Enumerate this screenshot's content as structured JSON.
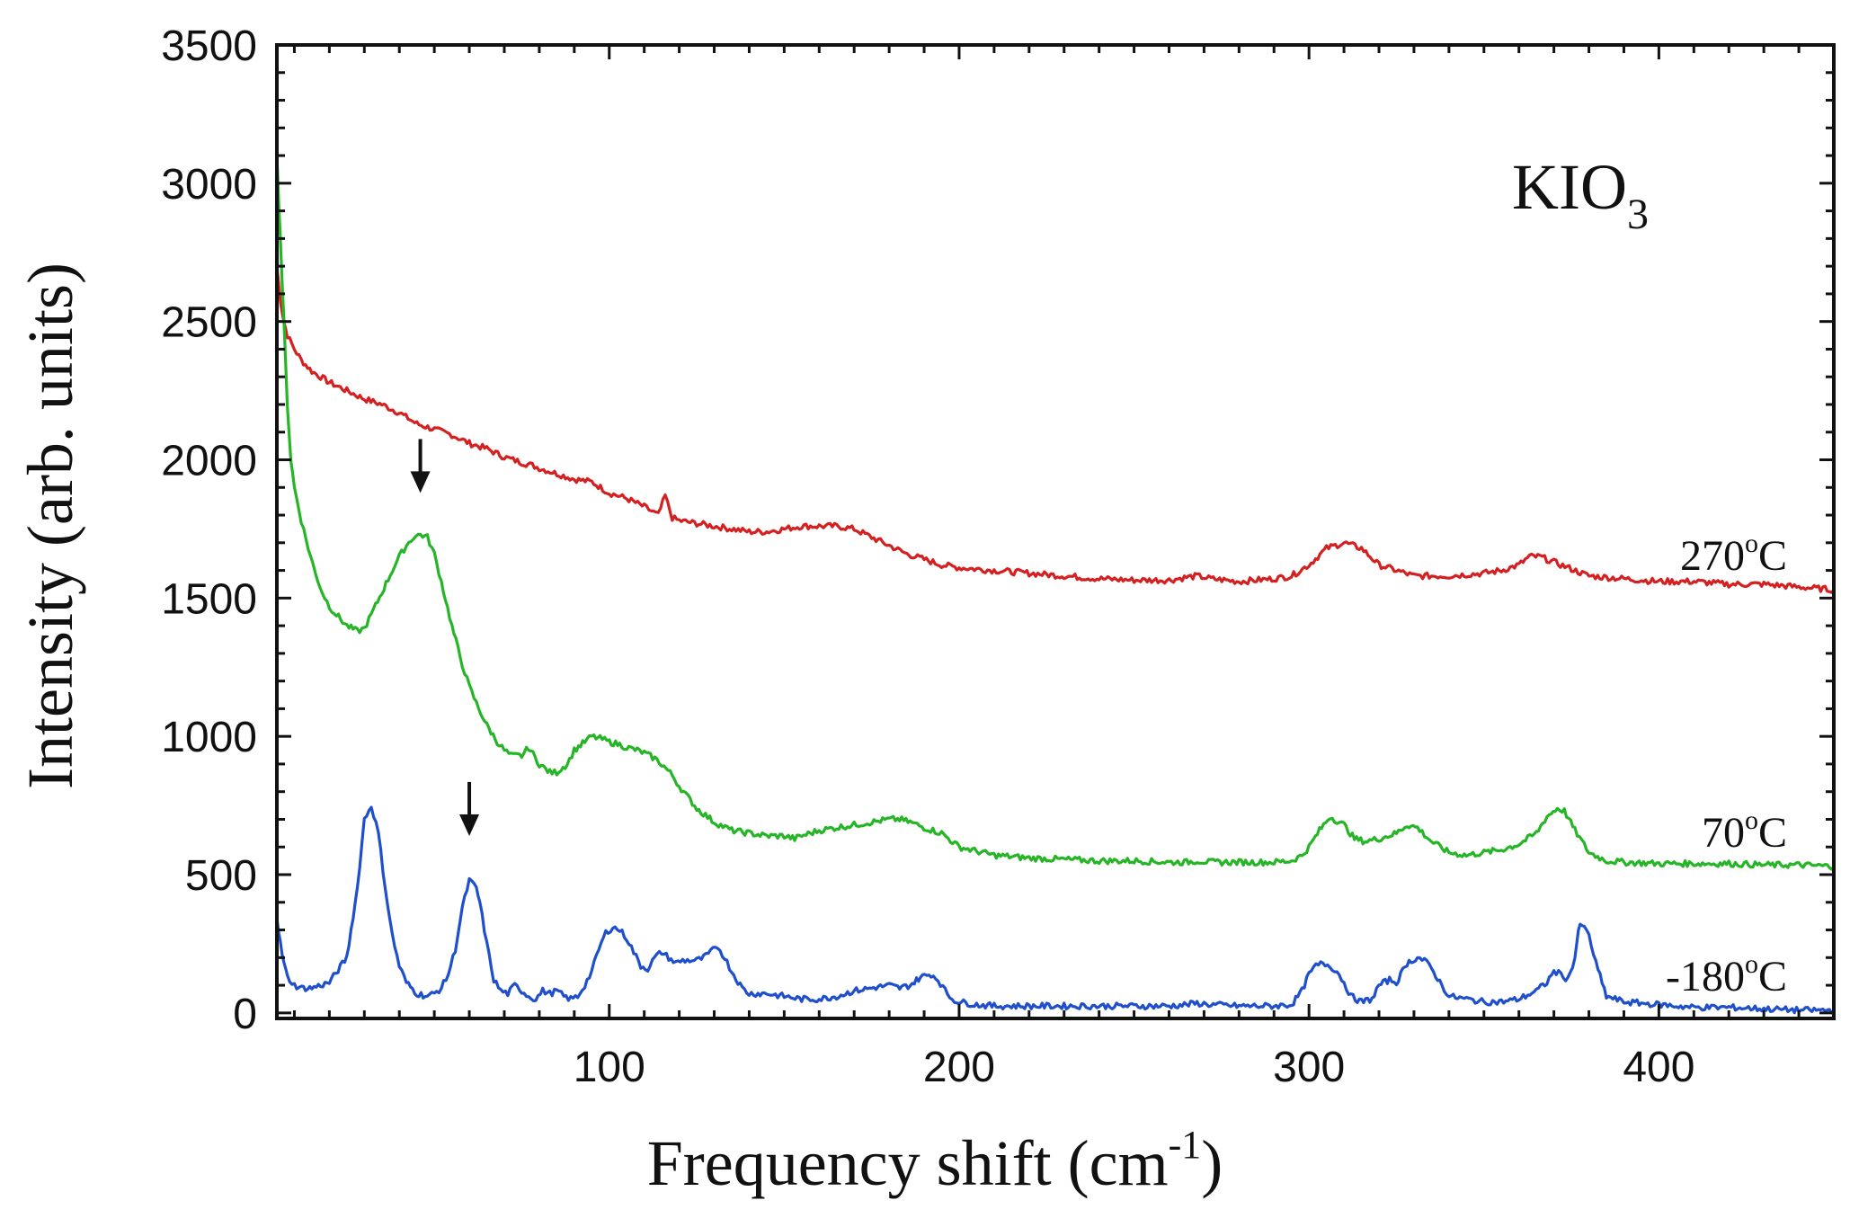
{
  "chart_data": {
    "type": "line",
    "title": "",
    "annotation": {
      "text": "KIO",
      "subscript": "3"
    },
    "xlabel": {
      "text": "Frequency shift (cm",
      "superscript": "-1",
      "suffix": ")"
    },
    "ylabel": "Intensity (arb. units)",
    "xlim": [
      5,
      450
    ],
    "ylim": [
      -20,
      3500
    ],
    "xticks": [
      100,
      200,
      300,
      400
    ],
    "xtick_labels": [
      "100",
      "200",
      "300",
      "400"
    ],
    "yticks": [
      0,
      500,
      1000,
      1500,
      2000,
      2500,
      3000,
      3500
    ],
    "ytick_labels": [
      "0",
      "500",
      "1000",
      "1500",
      "2000",
      "2500",
      "3000",
      "3500"
    ],
    "grid": false,
    "series": [
      {
        "name": "270°C",
        "label_main": "270",
        "label_deg": "o",
        "label_unit": "C",
        "color": "#d42020",
        "x": [
          5,
          6,
          7,
          8,
          10,
          12,
          15,
          20,
          25,
          30,
          35,
          40,
          45,
          50,
          55,
          60,
          65,
          70,
          75,
          78,
          80,
          85,
          90,
          95,
          100,
          105,
          110,
          114,
          116,
          118,
          120,
          125,
          130,
          135,
          140,
          145,
          150,
          155,
          160,
          165,
          170,
          175,
          180,
          185,
          190,
          195,
          200,
          210,
          220,
          230,
          240,
          250,
          260,
          265,
          268,
          272,
          280,
          290,
          295,
          300,
          305,
          310,
          315,
          320,
          330,
          340,
          350,
          355,
          360,
          363,
          366,
          370,
          380,
          390,
          400,
          410,
          420,
          430,
          440,
          450
        ],
        "y": [
          2700,
          2580,
          2500,
          2450,
          2400,
          2360,
          2320,
          2280,
          2250,
          2220,
          2200,
          2170,
          2130,
          2110,
          2090,
          2060,
          2040,
          2010,
          1990,
          1980,
          1970,
          1950,
          1930,
          1920,
          1880,
          1860,
          1830,
          1800,
          1870,
          1790,
          1780,
          1770,
          1760,
          1750,
          1740,
          1740,
          1750,
          1760,
          1760,
          1760,
          1750,
          1720,
          1690,
          1660,
          1640,
          1620,
          1610,
          1600,
          1590,
          1580,
          1570,
          1565,
          1565,
          1575,
          1580,
          1570,
          1560,
          1570,
          1580,
          1620,
          1680,
          1700,
          1680,
          1620,
          1580,
          1580,
          1590,
          1600,
          1620,
          1650,
          1650,
          1630,
          1580,
          1570,
          1560,
          1560,
          1550,
          1550,
          1540,
          1530
        ]
      },
      {
        "name": "70°C",
        "label_main": "70",
        "label_deg": "o",
        "label_unit": "C",
        "color": "#26b526",
        "x": [
          5,
          6,
          7,
          8,
          9,
          10,
          12,
          14,
          16,
          18,
          20,
          22,
          25,
          28,
          30,
          32,
          35,
          38,
          40,
          42,
          44,
          46,
          48,
          50,
          52,
          55,
          58,
          60,
          62,
          65,
          68,
          70,
          72,
          75,
          77,
          80,
          83,
          85,
          88,
          90,
          93,
          95,
          98,
          100,
          103,
          105,
          108,
          110,
          113,
          115,
          118,
          120,
          125,
          130,
          135,
          140,
          145,
          150,
          153,
          155,
          160,
          165,
          170,
          175,
          180,
          183,
          186,
          190,
          195,
          200,
          210,
          220,
          230,
          240,
          250,
          260,
          265,
          268,
          272,
          280,
          290,
          295,
          298,
          300,
          303,
          306,
          310,
          313,
          316,
          320,
          325,
          328,
          331,
          335,
          340,
          345,
          350,
          355,
          360,
          365,
          368,
          371,
          373,
          376,
          380,
          385,
          390,
          400,
          410,
          420,
          430,
          440,
          450
        ],
        "y": [
          3100,
          2800,
          2500,
          2200,
          2000,
          1900,
          1780,
          1680,
          1590,
          1520,
          1470,
          1440,
          1400,
          1380,
          1390,
          1440,
          1520,
          1600,
          1650,
          1690,
          1720,
          1730,
          1720,
          1660,
          1560,
          1400,
          1260,
          1180,
          1120,
          1040,
          980,
          950,
          930,
          930,
          960,
          900,
          870,
          870,
          900,
          950,
          980,
          1000,
          990,
          980,
          970,
          960,
          950,
          940,
          920,
          900,
          860,
          820,
          740,
          690,
          660,
          650,
          640,
          640,
          630,
          640,
          660,
          670,
          680,
          690,
          700,
          700,
          690,
          670,
          650,
          600,
          570,
          560,
          555,
          550,
          550,
          545,
          545,
          550,
          545,
          545,
          545,
          550,
          570,
          600,
          660,
          710,
          680,
          630,
          620,
          630,
          650,
          680,
          670,
          620,
          580,
          570,
          580,
          590,
          610,
          650,
          710,
          740,
          730,
          660,
          580,
          550,
          545,
          540,
          540,
          540,
          535,
          535,
          530
        ]
      },
      {
        "name": "-180°C",
        "label_main": "-180",
        "label_deg": "o",
        "label_unit": "C",
        "color": "#1f4fcc",
        "x": [
          5,
          6,
          7,
          8,
          10,
          12,
          15,
          20,
          25,
          28,
          30,
          32,
          34,
          36,
          38,
          40,
          42,
          45,
          48,
          50,
          52,
          54,
          56,
          58,
          60,
          62,
          63,
          65,
          67,
          69,
          71,
          73,
          75,
          77,
          79,
          81,
          83,
          85,
          87,
          89,
          91,
          93,
          95,
          97,
          99,
          101,
          103,
          105,
          107,
          109,
          111,
          113,
          115,
          117,
          119,
          121,
          123,
          125,
          127,
          129,
          131,
          133,
          135,
          138,
          140,
          145,
          150,
          155,
          160,
          165,
          170,
          175,
          180,
          183,
          186,
          189,
          192,
          194,
          196,
          198,
          200,
          205,
          210,
          220,
          230,
          240,
          250,
          260,
          265,
          268,
          272,
          280,
          290,
          295,
          298,
          300,
          302,
          304,
          306,
          308,
          310,
          312,
          315,
          318,
          320,
          323,
          325,
          328,
          331,
          333,
          335,
          338,
          340,
          345,
          350,
          355,
          360,
          365,
          368,
          370,
          372,
          374,
          376,
          377,
          378,
          380,
          382,
          385,
          390,
          400,
          410,
          420,
          430,
          440,
          450
        ],
        "y": [
          350,
          250,
          180,
          130,
          100,
          90,
          90,
          110,
          200,
          450,
          700,
          750,
          650,
          450,
          280,
          170,
          110,
          70,
          60,
          70,
          90,
          140,
          230,
          380,
          480,
          450,
          400,
          250,
          120,
          80,
          70,
          100,
          80,
          60,
          50,
          80,
          70,
          80,
          60,
          50,
          60,
          100,
          150,
          230,
          290,
          310,
          300,
          270,
          220,
          170,
          160,
          200,
          220,
          200,
          180,
          190,
          190,
          190,
          200,
          220,
          240,
          200,
          150,
          90,
          70,
          70,
          60,
          50,
          50,
          60,
          80,
          90,
          100,
          90,
          100,
          130,
          140,
          120,
          80,
          50,
          40,
          30,
          25,
          25,
          25,
          25,
          25,
          25,
          30,
          35,
          30,
          25,
          25,
          30,
          80,
          140,
          170,
          180,
          170,
          150,
          110,
          60,
          40,
          50,
          100,
          120,
          110,
          180,
          200,
          190,
          160,
          100,
          60,
          50,
          40,
          40,
          50,
          80,
          110,
          150,
          140,
          120,
          200,
          300,
          320,
          280,
          180,
          60,
          40,
          30,
          20,
          20,
          15,
          10,
          10
        ]
      }
    ],
    "markers": [
      {
        "type": "arrow-down",
        "series": "70°C",
        "x": 46,
        "y": 1880
      },
      {
        "type": "arrow-down",
        "series": "-180°C",
        "x": 60,
        "y": 640
      }
    ]
  }
}
